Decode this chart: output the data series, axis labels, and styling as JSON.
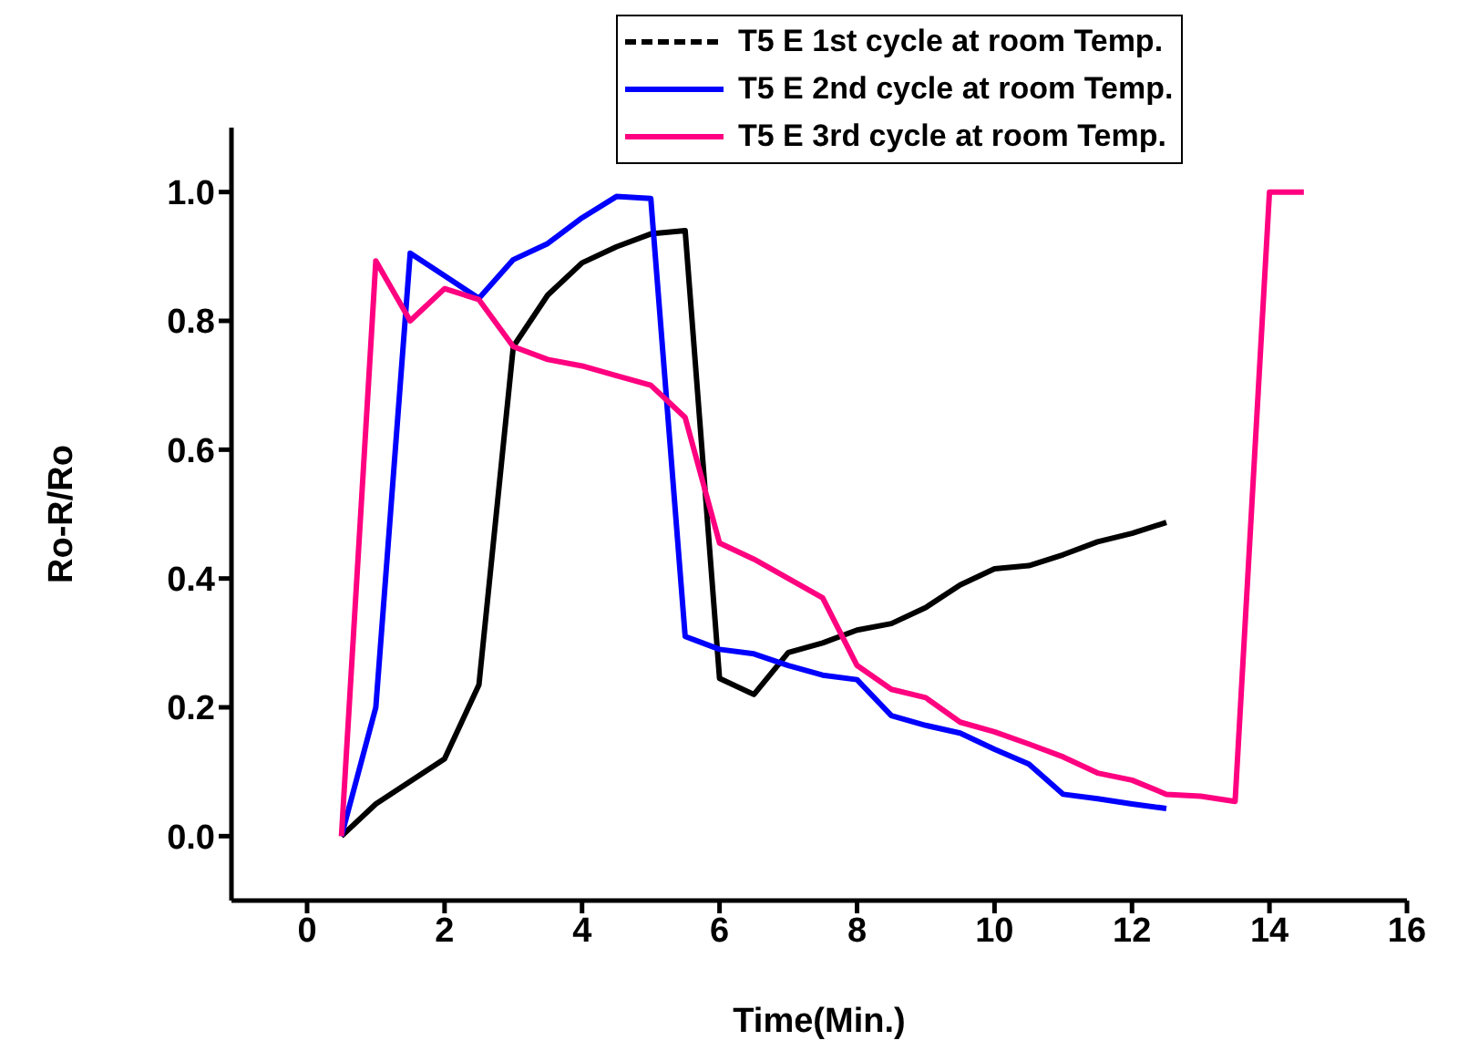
{
  "chart_data": {
    "type": "line",
    "xlabel": "Time(Min.)",
    "ylabel": "Ro-R/Ro",
    "x": [
      0.5,
      1,
      1.5,
      2,
      2.5,
      3,
      3.5,
      4,
      4.5,
      5,
      5.5,
      6,
      6.5,
      7,
      7.5,
      8,
      8.5,
      9,
      9.5,
      10,
      10.5,
      11,
      11.5,
      12,
      12.5,
      13,
      13.5,
      14,
      14.5
    ],
    "series": [
      {
        "name": "T5 E 1st cycle at room Temp.",
        "color": "#000000",
        "values": [
          0,
          0.05,
          0.085,
          0.12,
          0.235,
          0.76,
          0.84,
          0.89,
          0.915,
          0.935,
          0.94,
          0.245,
          0.22,
          0.285,
          0.3,
          0.32,
          0.33,
          0.355,
          0.39,
          0.415,
          0.42,
          0.437,
          0.457,
          0.47,
          0.487,
          null,
          null,
          null,
          null
        ]
      },
      {
        "name": "T5 E 2nd cycle at room Temp.",
        "color": "#0000ff",
        "values": [
          0,
          0.2,
          0.905,
          0.87,
          0.835,
          0.895,
          0.92,
          0.96,
          0.993,
          0.99,
          0.31,
          0.29,
          0.283,
          0.265,
          0.25,
          0.243,
          0.187,
          0.172,
          0.16,
          0.135,
          0.112,
          0.065,
          0.058,
          0.05,
          0.043,
          null,
          null,
          null,
          null
        ]
      },
      {
        "name": "T5 E 3rd cycle at room Temp.",
        "color": "#ff0080",
        "values": [
          0,
          0.893,
          0.8,
          0.85,
          0.833,
          0.76,
          0.74,
          0.73,
          0.715,
          0.7,
          0.65,
          0.455,
          0.43,
          0.4,
          0.37,
          0.265,
          0.228,
          0.215,
          0.177,
          0.162,
          0.143,
          0.123,
          0.098,
          0.087,
          0.065,
          0.062,
          0.054,
          1.0,
          1.0
        ]
      }
    ],
    "xlim": [
      -1.1,
      16
    ],
    "xticks": [
      0,
      2,
      4,
      6,
      8,
      10,
      12,
      14,
      16
    ],
    "ylim": [
      -0.1,
      1.1
    ],
    "yticks": [
      {
        "value": 0,
        "label": "0.0"
      },
      {
        "value": 0.2,
        "label": "0.2"
      },
      {
        "value": 0.4,
        "label": "0.4"
      },
      {
        "value": 0.6,
        "label": "0.6"
      },
      {
        "value": 0.8,
        "label": "0.8"
      },
      {
        "value": 1,
        "label": "1.0"
      }
    ],
    "legend": "top",
    "line_style": "solid",
    "marker": "none",
    "grid": false
  }
}
